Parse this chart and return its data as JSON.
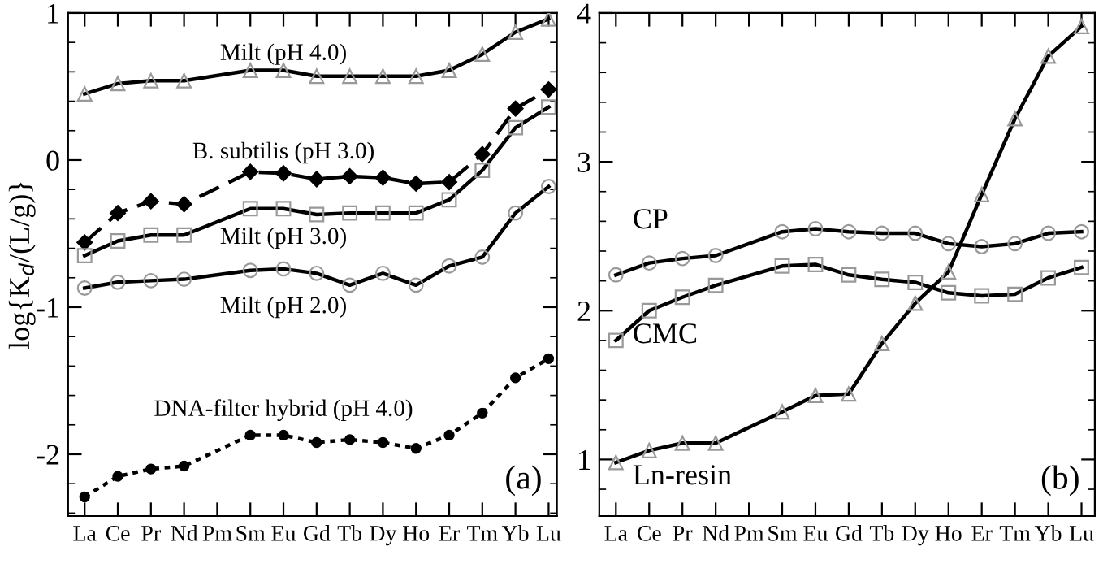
{
  "chart_data": [
    {
      "type": "line",
      "ylabel": "log{K$_{d}$/(L/g)}",
      "categories": [
        "La",
        "Ce",
        "Pr",
        "Nd",
        "Pm",
        "Sm",
        "Eu",
        "Gd",
        "Tb",
        "Dy",
        "Ho",
        "Er",
        "Tm",
        "Yb",
        "Lu"
      ],
      "ylim": [
        -2.42,
        1
      ],
      "yticks": [
        -2,
        -1,
        0,
        1
      ],
      "grid": false,
      "annotations": [
        "(a)"
      ],
      "series": [
        {
          "name": "Milt (pH 4.0)",
          "color": "#000000",
          "marker": "triangle",
          "line_style": "solid",
          "values": [
            0.45,
            0.52,
            0.54,
            0.54,
            null,
            0.61,
            0.61,
            0.57,
            0.57,
            0.57,
            0.57,
            0.61,
            0.72,
            0.87,
            0.96
          ]
        },
        {
          "name": "B. subtilis (pH 3.0)",
          "color": "#000000",
          "marker": "diamond",
          "line_style": "dashed",
          "values": [
            -0.56,
            -0.36,
            -0.28,
            -0.3,
            null,
            -0.08,
            -0.09,
            -0.13,
            -0.11,
            -0.12,
            -0.16,
            -0.15,
            0.04,
            0.35,
            0.48
          ]
        },
        {
          "name": "Milt (pH 3.0)",
          "color": "#000000",
          "marker": "square",
          "line_style": "solid",
          "values": [
            -0.65,
            -0.55,
            -0.51,
            -0.51,
            null,
            -0.33,
            -0.33,
            -0.37,
            -0.36,
            -0.36,
            -0.36,
            -0.27,
            -0.07,
            0.22,
            0.36
          ]
        },
        {
          "name": "Milt (pH 2.0)",
          "color": "#000000",
          "marker": "circle",
          "line_style": "solid",
          "values": [
            -0.87,
            -0.83,
            -0.82,
            -0.81,
            null,
            -0.75,
            -0.74,
            -0.77,
            -0.85,
            -0.77,
            -0.85,
            -0.72,
            -0.66,
            -0.36,
            -0.18
          ]
        },
        {
          "name": "DNA-filter hybrid (pH 4.0)",
          "color": "#000000",
          "marker": "circle",
          "line_style": "dotted",
          "values": [
            -2.29,
            -2.15,
            -2.1,
            -2.08,
            null,
            -1.87,
            -1.87,
            -1.92,
            -1.9,
            -1.92,
            -1.96,
            -1.87,
            -1.72,
            -1.48,
            -1.35
          ]
        }
      ]
    },
    {
      "type": "line",
      "categories": [
        "La",
        "Ce",
        "Pr",
        "Nd",
        "Pm",
        "Sm",
        "Eu",
        "Gd",
        "Tb",
        "Dy",
        "Ho",
        "Er",
        "Tm",
        "Yb",
        "Lu"
      ],
      "ylim": [
        0.62,
        4
      ],
      "yticks": [
        1,
        2,
        3,
        4
      ],
      "grid": false,
      "annotations": [
        "(b)"
      ],
      "series": [
        {
          "name": "CP",
          "color": "#000000",
          "marker": "circle",
          "line_style": "solid",
          "values": [
            2.24,
            2.32,
            2.35,
            2.37,
            null,
            2.53,
            2.55,
            2.53,
            2.52,
            2.52,
            2.45,
            2.43,
            2.45,
            2.52,
            2.53
          ]
        },
        {
          "name": "CMC",
          "color": "#000000",
          "marker": "square",
          "line_style": "solid",
          "values": [
            1.8,
            2.0,
            2.09,
            2.17,
            null,
            2.3,
            2.31,
            2.24,
            2.21,
            2.19,
            2.12,
            2.1,
            2.11,
            2.22,
            2.29
          ]
        },
        {
          "name": "Ln-resin",
          "color": "#000000",
          "marker": "triangle",
          "line_style": "solid",
          "values": [
            0.98,
            1.06,
            1.11,
            1.11,
            null,
            1.32,
            1.43,
            1.44,
            1.78,
            2.05,
            2.26,
            2.78,
            3.29,
            3.71,
            3.91
          ]
        }
      ]
    }
  ]
}
